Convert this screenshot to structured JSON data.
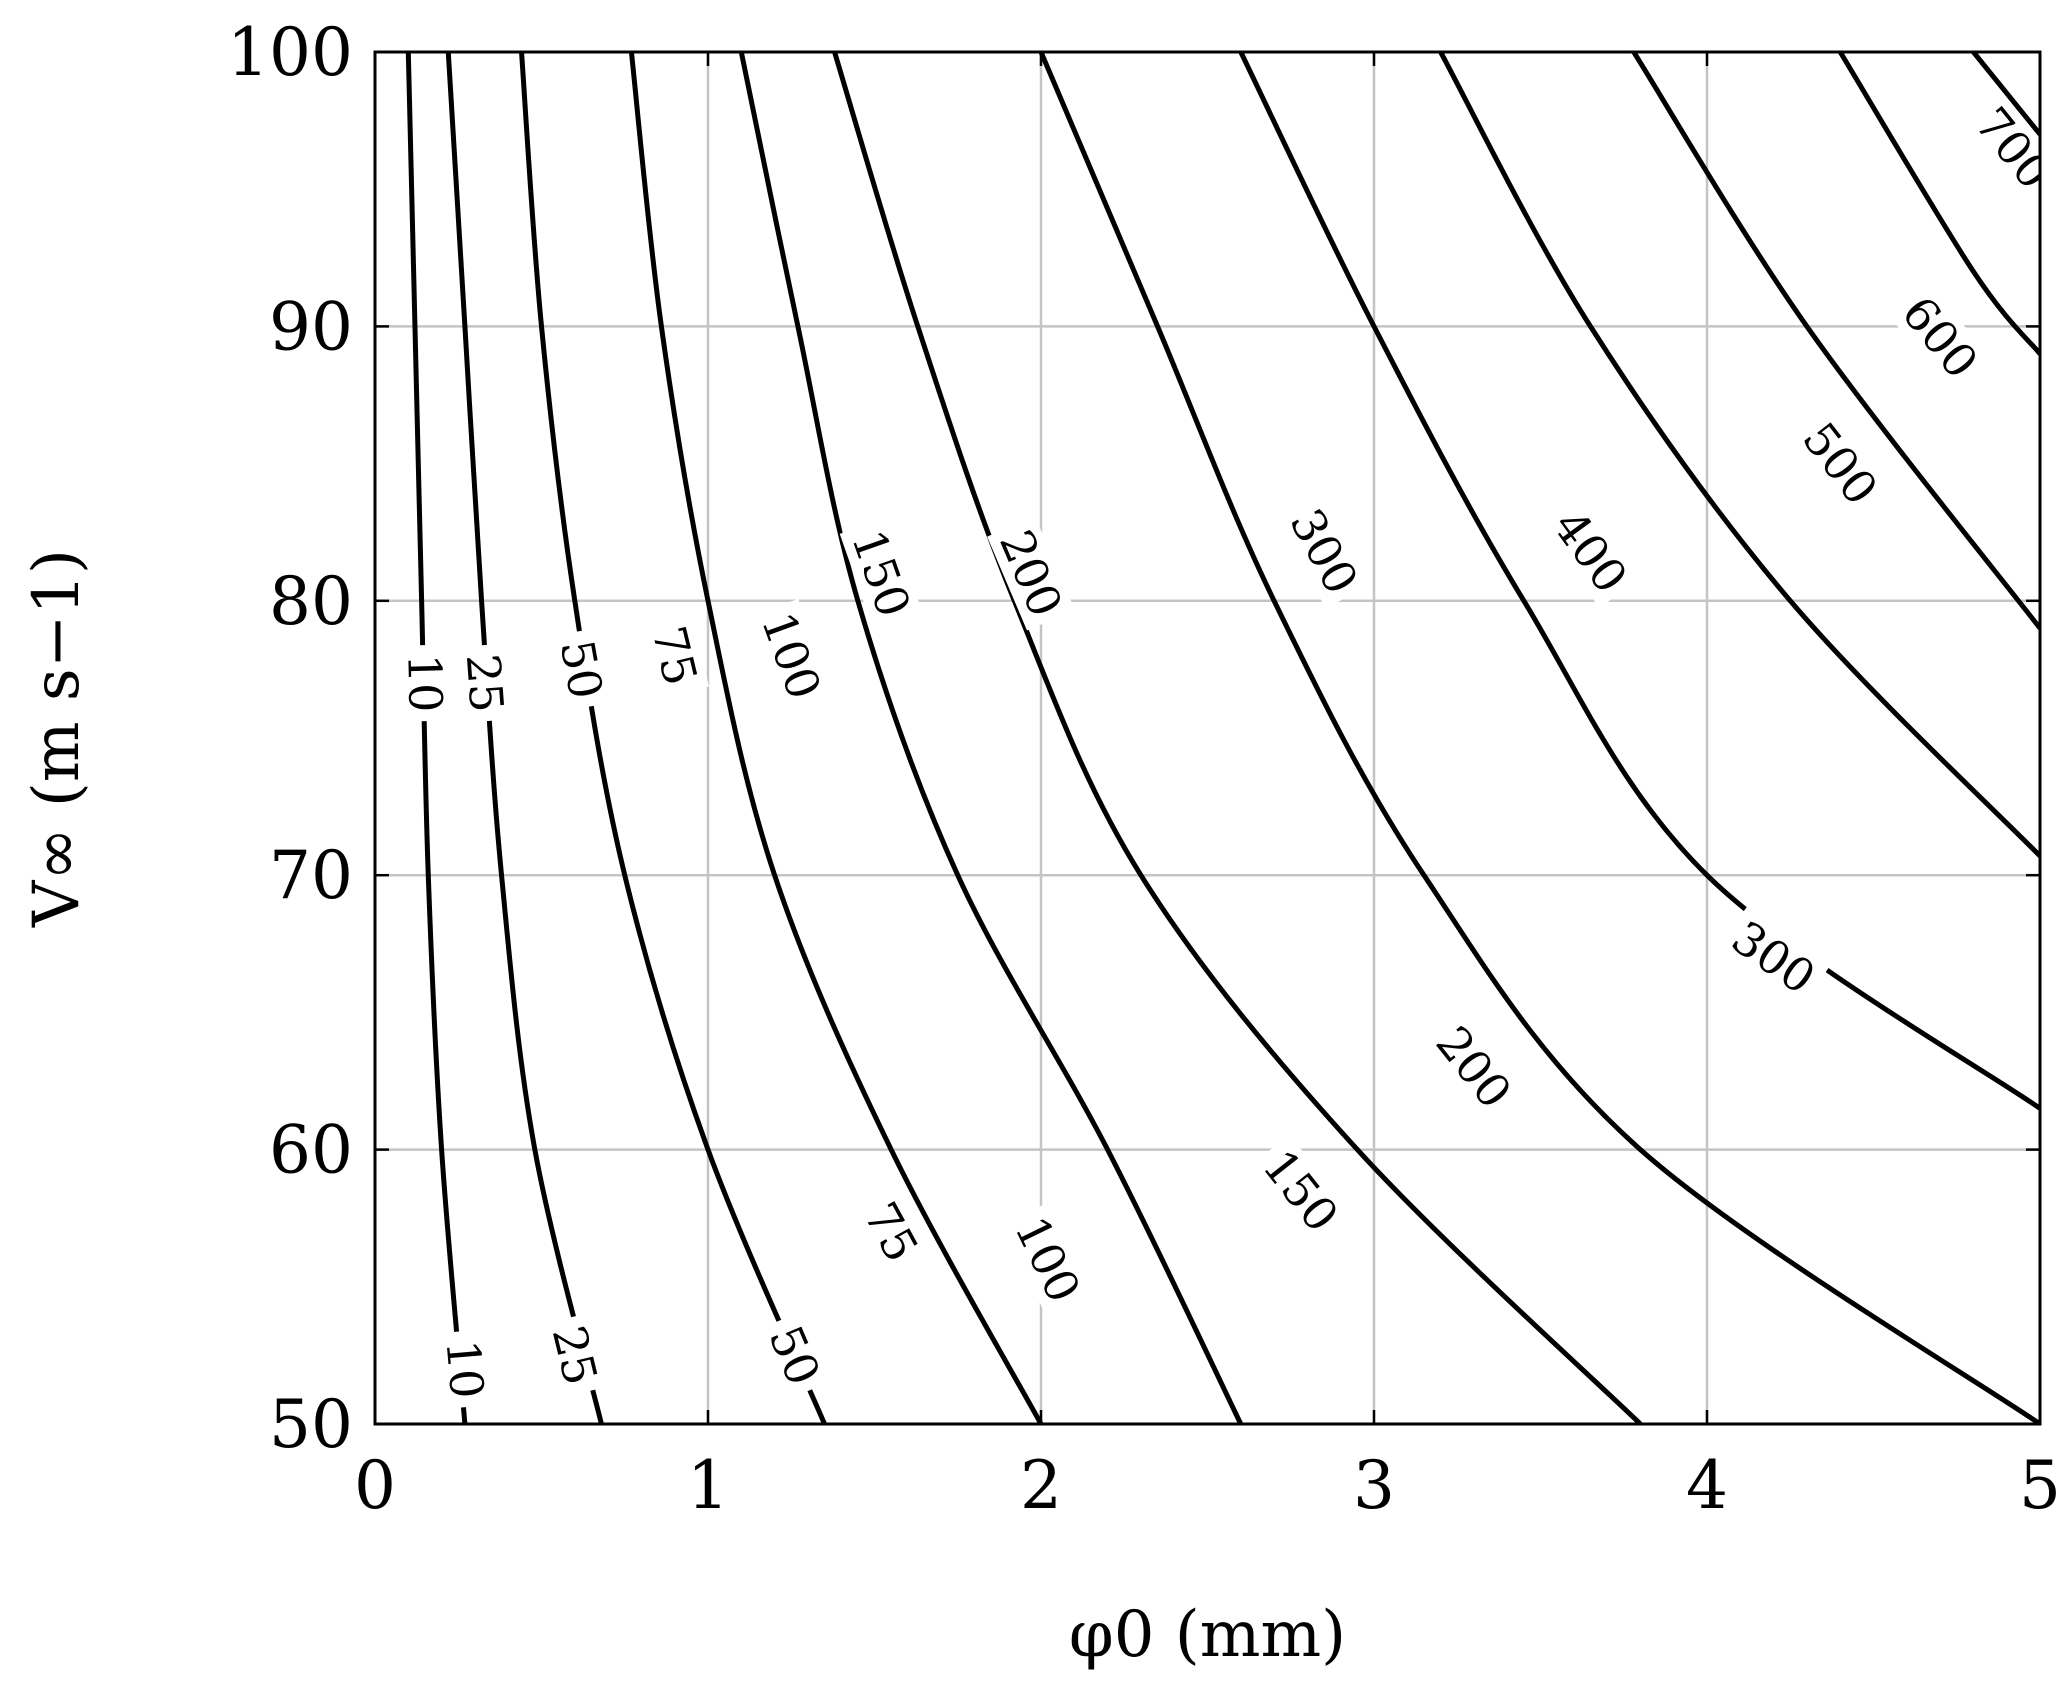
{
  "chart_data": {
    "type": "contour",
    "xlabel": "φ0 (mm)",
    "ylabel": "V∞ (m s−1)",
    "xlim": [
      0,
      5
    ],
    "ylim": [
      50,
      100
    ],
    "xticks": [
      0,
      1,
      2,
      3,
      4,
      5
    ],
    "yticks": [
      50,
      60,
      70,
      80,
      90,
      100
    ],
    "grid": true,
    "contours": [
      {
        "level": "10",
        "points": [
          [
            0.1,
            100
          ],
          [
            0.12,
            90
          ],
          [
            0.14,
            80
          ],
          [
            0.16,
            70
          ],
          [
            0.2,
            60
          ],
          [
            0.27,
            50
          ]
        ],
        "labels": [
          [
            0.15,
            77
          ],
          [
            0.27,
            52
          ]
        ]
      },
      {
        "level": "25",
        "points": [
          [
            0.22,
            100
          ],
          [
            0.27,
            90
          ],
          [
            0.32,
            80
          ],
          [
            0.38,
            70
          ],
          [
            0.48,
            60
          ],
          [
            0.68,
            50
          ]
        ],
        "labels": [
          [
            0.33,
            77
          ],
          [
            0.6,
            52.5
          ]
        ]
      },
      {
        "level": "50",
        "points": [
          [
            0.44,
            100
          ],
          [
            0.5,
            90
          ],
          [
            0.6,
            80
          ],
          [
            0.75,
            70
          ],
          [
            1.0,
            60
          ],
          [
            1.35,
            50
          ]
        ],
        "labels": [
          [
            0.62,
            77.5
          ],
          [
            1.26,
            52.5
          ]
        ]
      },
      {
        "level": "75",
        "points": [
          [
            0.77,
            100
          ],
          [
            0.86,
            90
          ],
          [
            1.0,
            80
          ],
          [
            1.2,
            70
          ],
          [
            1.55,
            60
          ],
          [
            2.0,
            50
          ]
        ],
        "labels": [
          [
            0.9,
            78
          ],
          [
            1.55,
            57
          ]
        ]
      },
      {
        "level": "100",
        "points": [
          [
            1.1,
            100
          ],
          [
            1.27,
            90
          ],
          [
            1.45,
            80
          ],
          [
            1.75,
            70
          ],
          [
            2.2,
            60
          ],
          [
            2.6,
            50
          ]
        ],
        "labels": [
          [
            1.25,
            78
          ],
          [
            2.02,
            56
          ]
        ]
      },
      {
        "level": "150",
        "points": [
          [
            1.38,
            100
          ],
          [
            1.63,
            90
          ],
          [
            1.92,
            80
          ],
          [
            2.3,
            70
          ],
          [
            2.95,
            60
          ],
          [
            3.8,
            50
          ]
        ],
        "labels": [
          [
            1.52,
            81
          ],
          [
            2.78,
            58.5
          ]
        ]
      },
      {
        "level": "200",
        "points": [
          [
            2.0,
            100
          ],
          [
            2.35,
            90
          ],
          [
            2.7,
            80
          ],
          [
            3.15,
            70
          ],
          [
            3.8,
            60
          ],
          [
            5.0,
            50
          ]
        ],
        "labels": [
          [
            1.97,
            81
          ],
          [
            3.3,
            63
          ]
        ]
      },
      {
        "level": "300",
        "points": [
          [
            2.6,
            100
          ],
          [
            3.0,
            90
          ],
          [
            3.45,
            80
          ],
          [
            4.0,
            70
          ],
          [
            5.0,
            61.5
          ]
        ],
        "labels": [
          [
            2.85,
            81.8
          ],
          [
            4.2,
            67
          ]
        ]
      },
      {
        "level": "400",
        "points": [
          [
            3.2,
            100
          ],
          [
            3.65,
            90
          ],
          [
            4.25,
            80
          ],
          [
            5.0,
            70.7
          ]
        ],
        "labels": [
          [
            3.65,
            81.8
          ]
        ]
      },
      {
        "level": "500",
        "points": [
          [
            3.78,
            100
          ],
          [
            4.3,
            90
          ],
          [
            5.0,
            79
          ]
        ],
        "labels": [
          [
            4.4,
            85
          ]
        ]
      },
      {
        "level": "600",
        "points": [
          [
            4.4,
            100
          ],
          [
            4.8,
            92
          ],
          [
            5.0,
            89
          ]
        ],
        "labels": [
          [
            4.7,
            89.6
          ]
        ]
      },
      {
        "level": "700",
        "points": [
          [
            4.8,
            100
          ],
          [
            5.0,
            97
          ]
        ],
        "labels": [
          [
            4.92,
            96.5
          ]
        ]
      }
    ]
  }
}
